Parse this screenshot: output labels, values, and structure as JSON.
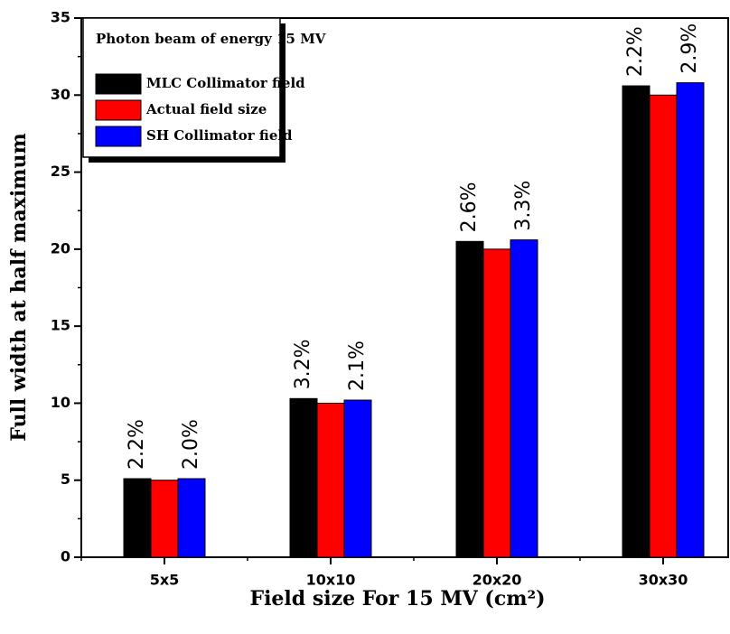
{
  "chart_data": {
    "type": "bar",
    "legend_title": "Photon beam of energy 15 MV",
    "x_label": "Field size For 15 MV (cm²)",
    "y_label": "Full width at half maximum",
    "categories": [
      "5x5",
      "10x10",
      "20x20",
      "30x30"
    ],
    "series": [
      {
        "name": "MLC Collimator field",
        "color": "#000000",
        "values": [
          5.1,
          10.3,
          20.5,
          30.6
        ],
        "annotations": [
          "2.2%",
          "3.2%",
          "2.6%",
          "2.2%"
        ]
      },
      {
        "name": "Actual field size",
        "color": "#ff0000",
        "values": [
          5.0,
          10.0,
          20.0,
          30.0
        ]
      },
      {
        "name": "SH Collimator field",
        "color": "#0000ff",
        "values": [
          5.1,
          10.2,
          20.6,
          30.8
        ],
        "annotations": [
          "2.0%",
          "2.1%",
          "3.3%",
          "2.9%"
        ]
      }
    ],
    "ylim": [
      0,
      35
    ],
    "yticks": [
      0,
      5,
      10,
      15,
      20,
      25,
      30,
      35
    ],
    "legend": "upper left"
  }
}
